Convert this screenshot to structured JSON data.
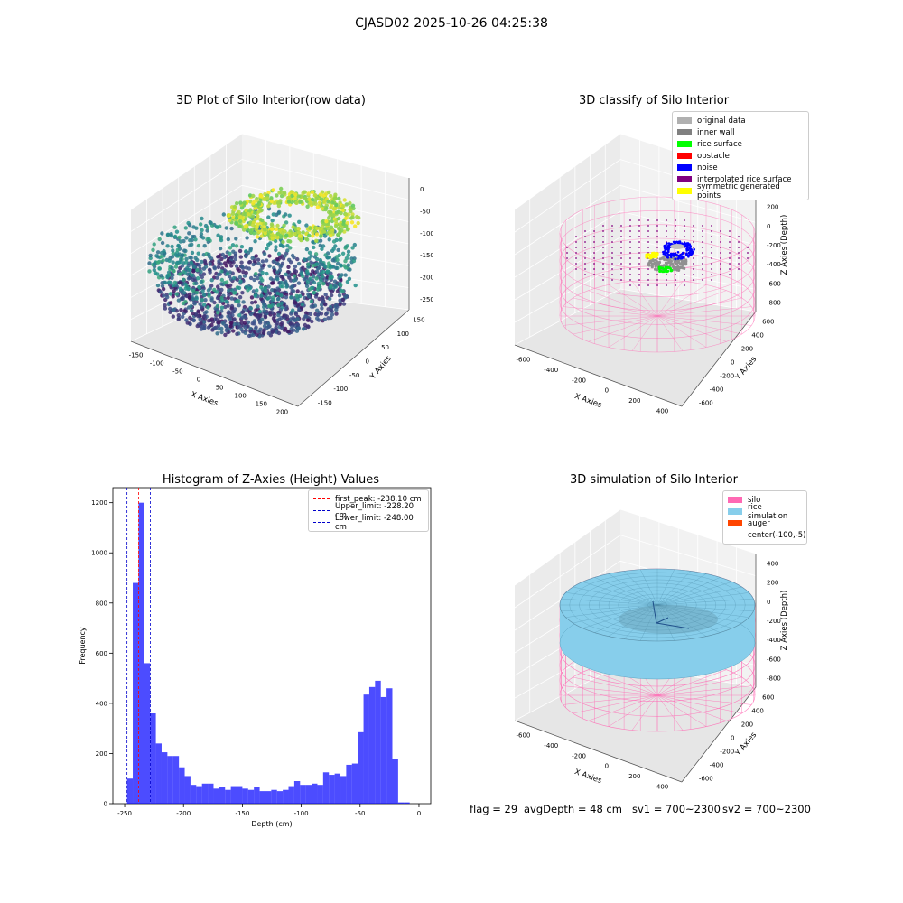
{
  "figure_title": "CJASD02 2025-10-26 04:25:38",
  "colors": {
    "viridis_dark": "#440154",
    "viridis_mid": "#21918c",
    "viridis_light": "#fde725",
    "silo": "#ff69b4",
    "rice": "#87ceeb",
    "histogram": "#0000ff"
  },
  "status_bar": {
    "flag": "flag = 29",
    "avg_depth": "avgDepth = 48 cm",
    "sv1": "sv1 = 700~2300",
    "sv2": "sv2 = 700~2300"
  },
  "panels": {
    "raw": {
      "title": "3D Plot of Silo Interior(row data)",
      "x_ticks": [
        "-150",
        "-100",
        "-50",
        "0",
        "50",
        "100",
        "150",
        "200"
      ],
      "y_ticks": [
        "150",
        "100",
        "50",
        "0",
        "-50",
        "-100",
        "-150"
      ],
      "z_ticks": [
        "0",
        "-50",
        "-100",
        "-150",
        "-200",
        "-250"
      ]
    },
    "classify": {
      "title": "3D classify of Silo Interior",
      "legend": [
        {
          "label": "original data",
          "color": "#b0b0b0"
        },
        {
          "label": "inner wall",
          "color": "#808080"
        },
        {
          "label": "rice surface",
          "color": "#00ff00"
        },
        {
          "label": "obstacle",
          "color": "#ff0000"
        },
        {
          "label": "noise",
          "color": "#0000ff"
        },
        {
          "label": "interpolated rice surface",
          "color": "#800080"
        },
        {
          "label": "symmetric generated points",
          "color": "#ffff00"
        }
      ],
      "x_ticks": [
        "-600",
        "-400",
        "-200",
        "0",
        "200",
        "400"
      ],
      "y_ticks": [
        "600",
        "400",
        "200",
        "0",
        "-200",
        "-400",
        "-600"
      ],
      "z_ticks": [
        "400",
        "200",
        "0",
        "-200",
        "-400",
        "-600",
        "-800"
      ]
    },
    "simulation": {
      "title": "3D simulation of Silo Interior",
      "legend": [
        {
          "label": "silo",
          "color": "#ff69b4"
        },
        {
          "label": "rice simulation",
          "color": "#87ceeb"
        },
        {
          "label": "auger",
          "color": "#ff4500"
        },
        {
          "label": "center(-100,-5)",
          "color": ""
        }
      ],
      "x_ticks": [
        "-600",
        "-400",
        "-200",
        "0",
        "200",
        "400"
      ],
      "y_ticks": [
        "600",
        "400",
        "200",
        "0",
        "-200",
        "-400",
        "-600"
      ],
      "z_ticks": [
        "400",
        "200",
        "0",
        "-200",
        "-400",
        "-600",
        "-800"
      ]
    },
    "axis_labels": {
      "x": "X Axies",
      "y": "Y Axies",
      "z": "Z Axies (Depth)"
    }
  },
  "chart_data": [
    {
      "type": "bar",
      "title": "Histogram of Z-Axies (Height) Values",
      "xlabel": "Depth (cm)",
      "ylabel": "Frequency",
      "xlim": [
        -260,
        10
      ],
      "ylim": [
        0,
        1260
      ],
      "x_ticks": [
        -250,
        -200,
        -150,
        -100,
        -50,
        0
      ],
      "y_ticks": [
        0,
        200,
        400,
        600,
        800,
        1000,
        1200
      ],
      "bin_start": -248,
      "bin_width": 4.9,
      "values": [
        100,
        880,
        1200,
        560,
        360,
        240,
        205,
        190,
        190,
        145,
        110,
        75,
        70,
        80,
        80,
        60,
        65,
        55,
        70,
        70,
        60,
        55,
        65,
        50,
        50,
        55,
        50,
        55,
        70,
        90,
        75,
        75,
        80,
        75,
        125,
        115,
        120,
        110,
        155,
        160,
        285,
        435,
        465,
        490,
        425,
        460,
        180,
        5,
        5
      ],
      "bar_color": "#0000ff",
      "bar_opacity": 0.7,
      "vlines": [
        {
          "label": "first_peak: -238.10 cm",
          "x": -238.1,
          "color": "#ff0000"
        },
        {
          "label": "Upper_limit: -228.20 cm",
          "x": -228.2,
          "color": "#0000cc"
        },
        {
          "label": "Lower_limit: -248.00 cm",
          "x": -248.0,
          "color": "#0000cc"
        }
      ],
      "legend_position": "top-right"
    }
  ]
}
